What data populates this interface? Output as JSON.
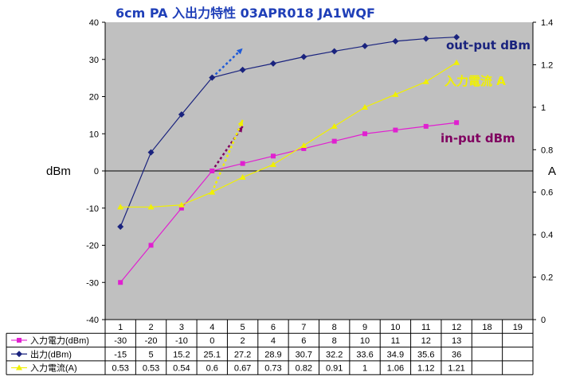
{
  "chart_data": {
    "type": "line",
    "title": "6cm  PA 入出力特性        03APR018    JA1WQF",
    "ylabel_left": "dBm",
    "ylabel_right": "A",
    "categories": [
      "1",
      "2",
      "3",
      "4",
      "5",
      "6",
      "7",
      "8",
      "9",
      "10",
      "11",
      "12",
      "18",
      "19"
    ],
    "ylim_left": [
      -40,
      40
    ],
    "yticks_left": [
      "40",
      "30",
      "20",
      "10",
      "0",
      "-10",
      "-20",
      "-30",
      "-40"
    ],
    "ylim_right": [
      0,
      1.4
    ],
    "yticks_right": [
      "1.4",
      "1.2",
      "1",
      "0.8",
      "0.6",
      "0.4",
      "0.2",
      "0"
    ],
    "grid": false,
    "background": "#c0c0c0",
    "series": [
      {
        "name": "入力電力(dBm)",
        "axis": "left",
        "color": "#e020d0",
        "marker": "square",
        "values": [
          -30,
          -20,
          -10,
          0,
          2,
          4,
          6,
          8,
          10,
          11,
          12,
          13,
          null,
          null
        ],
        "labels": [
          "-30",
          "-20",
          "-10",
          "0",
          "2",
          "4",
          "6",
          "8",
          "10",
          "11",
          "12",
          "13",
          "",
          ""
        ]
      },
      {
        "name": "出力(dBm)",
        "axis": "left",
        "color": "#1a237e",
        "marker": "diamond",
        "values": [
          -15,
          5,
          15.2,
          25.1,
          27.2,
          28.9,
          30.7,
          32.2,
          33.6,
          34.9,
          35.6,
          36,
          null,
          null
        ],
        "labels": [
          "-15",
          "5",
          "15.2",
          "25.1",
          "27.2",
          "28.9",
          "30.7",
          "32.2",
          "33.6",
          "34.9",
          "35.6",
          "36",
          "",
          ""
        ]
      },
      {
        "name": "入力電流(A)",
        "axis": "right",
        "color": "#f0f000",
        "marker": "triangle",
        "values": [
          0.53,
          0.53,
          0.54,
          0.6,
          0.67,
          0.73,
          0.82,
          0.91,
          1,
          1.06,
          1.12,
          1.21,
          null,
          null
        ],
        "labels": [
          "0.53",
          "0.53",
          "0.54",
          "0.6",
          "0.67",
          "0.73",
          "0.82",
          "0.91",
          "1",
          "1.06",
          "1.12",
          "1.21",
          "",
          ""
        ]
      }
    ],
    "extrapolations": [
      {
        "color": "#1e5ad8",
        "axis": "left",
        "from": [
          4,
          25.1
        ],
        "to": [
          5,
          33
        ]
      },
      {
        "color": "#800060",
        "axis": "left",
        "from": [
          4,
          0
        ],
        "to": [
          5,
          12
        ]
      },
      {
        "color": "#f0f000",
        "axis": "right",
        "from": [
          4,
          0.6
        ],
        "to": [
          5,
          0.94
        ]
      }
    ],
    "annotations": [
      {
        "text": "out-put dBm",
        "color": "#1a237e"
      },
      {
        "text": "入力電流  A",
        "color": "#f0f000"
      },
      {
        "text": "in-put dBm",
        "color": "#800060"
      }
    ]
  }
}
